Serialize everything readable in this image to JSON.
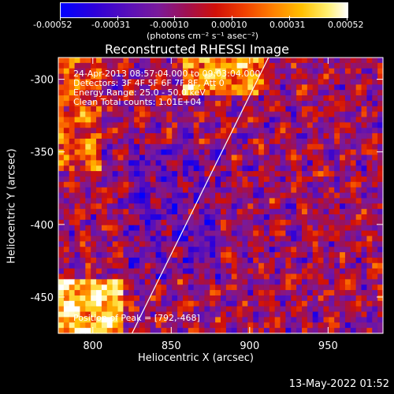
{
  "colorbar": {
    "ticks": [
      "-0.00052",
      "-0.00031",
      "-0.00010",
      "0.00010",
      "0.00031",
      "0.00052"
    ],
    "units": "(photons cm⁻² s⁻¹ asec⁻²)"
  },
  "chart_data": {
    "type": "heatmap",
    "title": "Reconstructed RHESSI Image",
    "xlabel": "Heliocentric X (arcsec)",
    "ylabel": "Heliocentric Y (arcsec)",
    "xlim": [
      778,
      985
    ],
    "ylim": [
      -475,
      -285
    ],
    "xticks": [
      "800",
      "850",
      "900",
      "950"
    ],
    "yticks": [
      "-300",
      "-350",
      "-400",
      "-450"
    ],
    "value_range": [
      -0.00052,
      0.00052
    ],
    "colormap": "blue-purple-red-yellow-white",
    "limb_line": {
      "x": [
        825,
        912
      ],
      "y": [
        -475,
        -285
      ]
    },
    "annotations": [
      "24-Apr-2013 08:57:04.000 to 09:03:04.000",
      "Detectors: 3F 4F 5F 6F 7F 8F, Att 0",
      "Energy Range: 25.0 - 50.0 keV",
      "Clean    Total counts: 1.01E+04"
    ],
    "peak_label": "Position of Peak = [792,-468]"
  },
  "footer": "13-May-2022 01:52"
}
